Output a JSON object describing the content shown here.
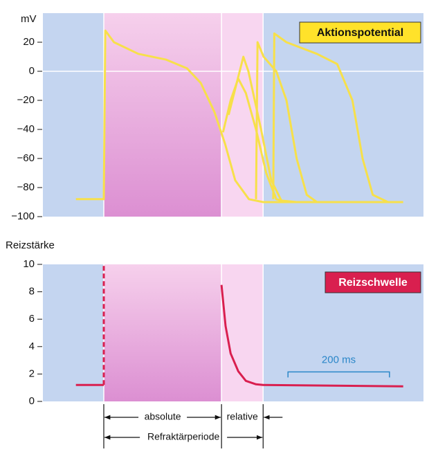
{
  "chart_data": [
    {
      "type": "line",
      "title": "Aktionspotential",
      "ylabel": "mV",
      "xlim": [
        0,
        750
      ],
      "ylim": [
        -100,
        40
      ],
      "yticks": [
        20,
        0,
        {
          "value": -20,
          "label": "−20"
        },
        {
          "value": -40,
          "label": "−40"
        },
        {
          "value": -60,
          "label": "−60"
        },
        {
          "value": -80,
          "label": "−80"
        },
        {
          "value": -100,
          "label": "−100"
        }
      ],
      "zero_line": true,
      "color": "#f7e04a",
      "series": [
        {
          "x": [
            65,
            120,
            123,
            140,
            188,
            243,
            284,
            311,
            338,
            359,
            379,
            406,
            434,
            710
          ],
          "values": [
            -88,
            -88,
            28,
            20,
            12,
            8,
            2,
            -8,
            -28,
            -50,
            -75,
            -88,
            -90,
            -90
          ]
        },
        {
          "x": [
            355,
            370,
            385,
            400,
            420,
            440,
            460,
            480
          ],
          "values": [
            -42,
            -20,
            -5,
            -15,
            -40,
            -70,
            -88,
            -90
          ]
        },
        {
          "x": [
            366,
            395,
            405,
            430,
            450,
            470,
            500
          ],
          "values": [
            -30,
            10,
            0,
            -40,
            -75,
            -89,
            -90
          ]
        },
        {
          "x": [
            420,
            423,
            435,
            460,
            480,
            500,
            520,
            540
          ],
          "values": [
            -88,
            20,
            10,
            0,
            -20,
            -60,
            -85,
            -90
          ]
        },
        {
          "x": [
            454,
            456,
            480,
            540,
            580,
            610,
            630,
            650,
            680
          ],
          "values": [
            -88,
            26,
            20,
            12,
            5,
            -20,
            -60,
            -85,
            -90
          ]
        }
      ]
    },
    {
      "type": "line",
      "title": "Reizschwelle",
      "ylabel": "Reizstärke",
      "xlim": [
        0,
        750
      ],
      "ylim": [
        0,
        10
      ],
      "yticks": [
        10,
        8,
        6,
        4,
        2,
        0
      ],
      "color": "#d91f4f",
      "series": [
        {
          "x": [
            65,
            120
          ],
          "values": [
            1.2,
            1.2
          ]
        },
        {
          "x": [
            120,
            120
          ],
          "values": [
            1.2,
            10
          ],
          "dashed": true
        },
        {
          "x": [
            352,
            360,
            370,
            385,
            400,
            420,
            434,
            710
          ],
          "values": [
            8.5,
            5.5,
            3.5,
            2.2,
            1.5,
            1.25,
            1.2,
            1.1
          ]
        }
      ],
      "scale_bar": {
        "label": "200 ms",
        "x": [
          483,
          683
        ],
        "y": 2
      }
    }
  ],
  "refractory": {
    "bands": [
      {
        "label": "absolute",
        "x": [
          120,
          352
        ]
      },
      {
        "label": "relative",
        "x": [
          352,
          434
        ]
      }
    ],
    "period": {
      "label": "Refraktärperiode",
      "x": [
        120,
        434
      ]
    }
  }
}
